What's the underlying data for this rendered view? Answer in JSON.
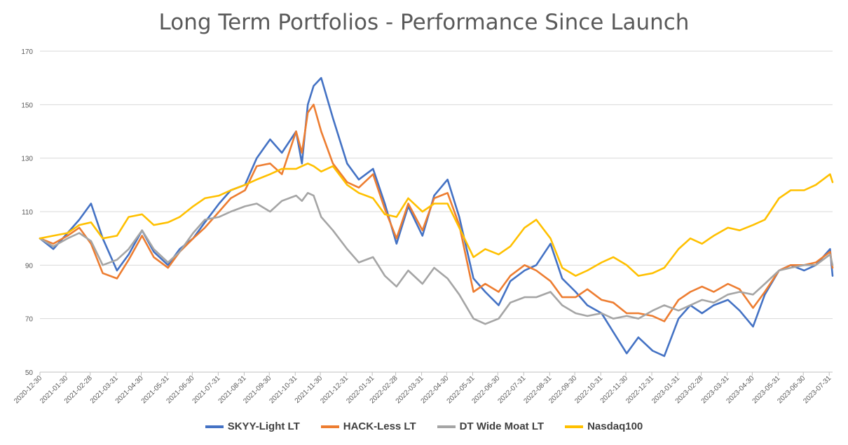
{
  "chart_data": {
    "type": "line",
    "title": "Long Term Portfolios - Performance Since Launch",
    "ylim": [
      50,
      170
    ],
    "yticks": [
      50,
      70,
      90,
      110,
      130,
      150,
      170
    ],
    "grid": "horizontal",
    "legend_position": "bottom",
    "x_tick_labels": [
      "2020-12-30",
      "2021-01-30",
      "2021-02-28",
      "2021-03-31",
      "2021-04-30",
      "2021-05-31",
      "2021-06-30",
      "2021-07-31",
      "2021-08-31",
      "2021-09-30",
      "2021-10-31",
      "2021-11-30",
      "2021-12-31",
      "2022-01-31",
      "2022-02-28",
      "2022-03-31",
      "2022-04-30",
      "2022-05-31",
      "2022-06-30",
      "2022-07-31",
      "2022-08-31",
      "2022-09-30",
      "2022-10-31",
      "2022-11-30",
      "2022-12-31",
      "2023-01-31",
      "2023-02-28",
      "2023-03-31",
      "2023-04-30",
      "2023-05-31",
      "2023-06-30",
      "2023-07-31"
    ],
    "x": [
      "2020-12-30",
      "2021-01-15",
      "2021-02-01",
      "2021-02-15",
      "2021-03-01",
      "2021-03-15",
      "2021-04-01",
      "2021-04-15",
      "2021-05-01",
      "2021-05-15",
      "2021-06-01",
      "2021-06-15",
      "2021-07-01",
      "2021-07-15",
      "2021-08-01",
      "2021-08-15",
      "2021-09-01",
      "2021-09-15",
      "2021-10-01",
      "2021-10-15",
      "2021-11-01",
      "2021-11-08",
      "2021-11-15",
      "2021-11-22",
      "2021-12-01",
      "2021-12-15",
      "2022-01-01",
      "2022-01-15",
      "2022-02-01",
      "2022-02-15",
      "2022-03-01",
      "2022-03-15",
      "2022-04-01",
      "2022-04-15",
      "2022-05-01",
      "2022-05-15",
      "2022-06-01",
      "2022-06-15",
      "2022-07-01",
      "2022-07-15",
      "2022-08-01",
      "2022-08-15",
      "2022-09-01",
      "2022-09-15",
      "2022-10-01",
      "2022-10-15",
      "2022-11-01",
      "2022-11-15",
      "2022-12-01",
      "2022-12-15",
      "2023-01-01",
      "2023-01-15",
      "2023-02-01",
      "2023-02-15",
      "2023-03-01",
      "2023-03-15",
      "2023-04-01",
      "2023-04-15",
      "2023-05-01",
      "2023-05-15",
      "2023-06-01",
      "2023-06-15",
      "2023-07-01",
      "2023-07-15",
      "2023-08-01",
      "2023-08-04"
    ],
    "series": [
      {
        "name": "SKYY-Light LT",
        "color": "#4472C4",
        "values": [
          100,
          96,
          102,
          107,
          113,
          100,
          88,
          94,
          103,
          95,
          90,
          96,
          100,
          106,
          113,
          118,
          120,
          130,
          137,
          132,
          140,
          128,
          150,
          157,
          160,
          145,
          128,
          122,
          126,
          113,
          98,
          112,
          101,
          116,
          122,
          108,
          85,
          80,
          75,
          84,
          88,
          90,
          98,
          85,
          80,
          75,
          72,
          65,
          57,
          63,
          58,
          56,
          70,
          75,
          72,
          75,
          77,
          73,
          67,
          79,
          88,
          90,
          88,
          90,
          96,
          86
        ]
      },
      {
        "name": "HACK-Less LT",
        "color": "#ED7D31",
        "values": [
          100,
          98,
          101,
          104,
          98,
          87,
          85,
          92,
          101,
          93,
          89,
          95,
          100,
          104,
          110,
          115,
          118,
          127,
          128,
          124,
          140,
          132,
          147,
          150,
          140,
          128,
          121,
          119,
          124,
          111,
          100,
          113,
          103,
          115,
          117,
          105,
          80,
          83,
          80,
          86,
          90,
          88,
          84,
          78,
          78,
          81,
          77,
          76,
          72,
          72,
          71,
          69,
          77,
          80,
          82,
          80,
          83,
          81,
          74,
          80,
          88,
          90,
          90,
          91,
          95,
          89
        ]
      },
      {
        "name": "DT Wide Moat LT",
        "color": "#A5A5A5",
        "values": [
          100,
          97,
          100,
          102,
          99,
          90,
          92,
          96,
          103,
          96,
          91,
          95,
          102,
          107,
          108,
          110,
          112,
          113,
          110,
          114,
          116,
          114,
          117,
          116,
          108,
          103,
          96,
          91,
          93,
          86,
          82,
          88,
          83,
          89,
          85,
          79,
          70,
          68,
          70,
          76,
          78,
          78,
          80,
          75,
          72,
          71,
          72,
          70,
          71,
          70,
          73,
          75,
          73,
          75,
          77,
          76,
          79,
          80,
          79,
          83,
          88,
          89,
          90,
          90,
          94,
          90
        ]
      },
      {
        "name": "Nasdaq100",
        "color": "#FFC000",
        "values": [
          100,
          101,
          102,
          105,
          106,
          100,
          101,
          108,
          109,
          105,
          106,
          108,
          112,
          115,
          116,
          118,
          120,
          122,
          124,
          126,
          126,
          127,
          128,
          127,
          125,
          127,
          120,
          117,
          115,
          109,
          108,
          115,
          110,
          113,
          113,
          104,
          93,
          96,
          94,
          97,
          104,
          107,
          100,
          89,
          86,
          88,
          91,
          93,
          90,
          86,
          87,
          89,
          96,
          100,
          98,
          101,
          104,
          103,
          105,
          107,
          115,
          118,
          118,
          120,
          124,
          121
        ]
      }
    ]
  }
}
